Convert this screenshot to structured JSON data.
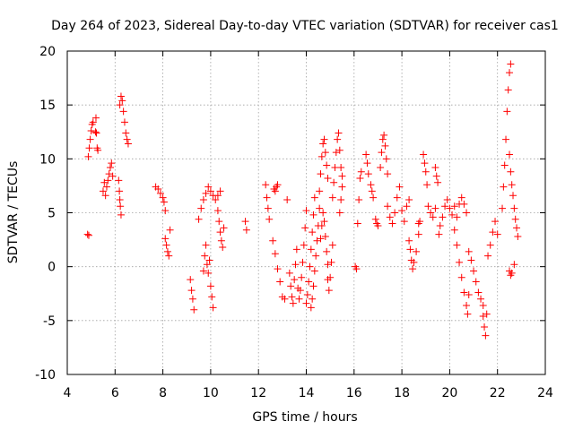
{
  "chart_data": {
    "type": "scatter",
    "title": "Day 264 of 2023, Sidereal Day-to-day VTEC variation (SDTVAR) for receiver cas1",
    "xlabel": "GPS time / hours",
    "ylabel": "SDTVAR / TECUs",
    "xlim": [
      4,
      24
    ],
    "ylim": [
      -10,
      20
    ],
    "grid": true,
    "marker": "+",
    "color": "#ff0000",
    "x_ticks": [
      "4",
      "6",
      "8",
      "10",
      "12",
      "14",
      "16",
      "18",
      "20",
      "22",
      "24"
    ],
    "y_ticks": [
      "-10",
      "-5",
      "0",
      "5",
      "10",
      "15",
      "20"
    ],
    "series": [
      {
        "name": "SDTVAR",
        "points": [
          [
            4.85,
            3.0
          ],
          [
            4.9,
            2.9
          ],
          [
            4.88,
            10.2
          ],
          [
            4.92,
            11.0
          ],
          [
            4.96,
            11.8
          ],
          [
            5.0,
            12.6
          ],
          [
            5.04,
            13.2
          ],
          [
            5.08,
            13.4
          ],
          [
            5.18,
            12.5
          ],
          [
            5.2,
            13.8
          ],
          [
            5.22,
            12.4
          ],
          [
            5.25,
            11.0
          ],
          [
            5.28,
            10.8
          ],
          [
            5.5,
            7.0
          ],
          [
            5.55,
            7.8
          ],
          [
            5.6,
            6.6
          ],
          [
            5.65,
            7.4
          ],
          [
            5.7,
            8.0
          ],
          [
            5.75,
            8.6
          ],
          [
            5.8,
            9.2
          ],
          [
            5.85,
            9.6
          ],
          [
            5.9,
            8.4
          ],
          [
            6.15,
            8.0
          ],
          [
            6.18,
            7.0
          ],
          [
            6.2,
            6.2
          ],
          [
            6.22,
            5.6
          ],
          [
            6.25,
            4.8
          ],
          [
            6.2,
            15.0
          ],
          [
            6.25,
            15.8
          ],
          [
            6.3,
            15.4
          ],
          [
            6.35,
            14.4
          ],
          [
            6.4,
            13.4
          ],
          [
            6.45,
            12.4
          ],
          [
            6.5,
            11.8
          ],
          [
            6.55,
            11.4
          ],
          [
            7.7,
            7.4
          ],
          [
            7.8,
            7.2
          ],
          [
            7.9,
            6.8
          ],
          [
            8.0,
            6.4
          ],
          [
            8.05,
            6.0
          ],
          [
            8.1,
            5.2
          ],
          [
            8.1,
            2.6
          ],
          [
            8.15,
            2.0
          ],
          [
            8.2,
            1.4
          ],
          [
            8.25,
            1.0
          ],
          [
            8.3,
            3.4
          ],
          [
            9.15,
            -1.2
          ],
          [
            9.2,
            -2.2
          ],
          [
            9.25,
            -3.0
          ],
          [
            9.3,
            -4.0
          ],
          [
            9.5,
            4.4
          ],
          [
            9.6,
            5.4
          ],
          [
            9.7,
            6.2
          ],
          [
            9.8,
            6.8
          ],
          [
            9.9,
            7.4
          ],
          [
            10.0,
            7.0
          ],
          [
            10.1,
            6.6
          ],
          [
            10.2,
            6.2
          ],
          [
            10.3,
            6.6
          ],
          [
            10.4,
            7.0
          ],
          [
            9.7,
            -0.4
          ],
          [
            9.75,
            1.0
          ],
          [
            9.8,
            2.0
          ],
          [
            9.85,
            0.2
          ],
          [
            9.9,
            -0.6
          ],
          [
            9.95,
            0.6
          ],
          [
            10.0,
            -1.8
          ],
          [
            10.05,
            -2.8
          ],
          [
            10.1,
            -3.8
          ],
          [
            10.3,
            5.2
          ],
          [
            10.35,
            4.2
          ],
          [
            10.4,
            3.2
          ],
          [
            10.45,
            2.4
          ],
          [
            10.5,
            1.8
          ],
          [
            10.55,
            3.6
          ],
          [
            11.45,
            4.2
          ],
          [
            11.5,
            3.4
          ],
          [
            12.3,
            7.6
          ],
          [
            12.35,
            6.4
          ],
          [
            12.4,
            5.4
          ],
          [
            12.45,
            4.4
          ],
          [
            12.65,
            7.2
          ],
          [
            12.7,
            7.0
          ],
          [
            12.75,
            7.4
          ],
          [
            12.8,
            7.6
          ],
          [
            12.6,
            2.4
          ],
          [
            12.7,
            1.2
          ],
          [
            12.8,
            -0.2
          ],
          [
            12.9,
            -1.4
          ],
          [
            13.0,
            -2.8
          ],
          [
            13.1,
            -3.0
          ],
          [
            13.2,
            6.2
          ],
          [
            13.3,
            -0.6
          ],
          [
            13.35,
            -1.8
          ],
          [
            13.4,
            -2.8
          ],
          [
            13.45,
            -3.4
          ],
          [
            13.5,
            -1.2
          ],
          [
            13.55,
            0.2
          ],
          [
            13.6,
            1.6
          ],
          [
            13.65,
            -2.0
          ],
          [
            13.7,
            -3.0
          ],
          [
            13.75,
            -2.2
          ],
          [
            13.8,
            -1.0
          ],
          [
            13.85,
            0.4
          ],
          [
            13.9,
            2.0
          ],
          [
            13.95,
            3.6
          ],
          [
            14.0,
            5.2
          ],
          [
            14.0,
            -3.4
          ],
          [
            14.05,
            -2.6
          ],
          [
            14.1,
            -1.4
          ],
          [
            14.15,
            0.0
          ],
          [
            14.2,
            1.6
          ],
          [
            14.25,
            3.2
          ],
          [
            14.3,
            4.8
          ],
          [
            14.35,
            6.4
          ],
          [
            14.2,
            -3.8
          ],
          [
            14.25,
            -3.0
          ],
          [
            14.3,
            -1.8
          ],
          [
            14.35,
            -0.4
          ],
          [
            14.4,
            1.0
          ],
          [
            14.45,
            2.4
          ],
          [
            14.5,
            3.8
          ],
          [
            14.55,
            5.4
          ],
          [
            14.55,
            7.0
          ],
          [
            14.6,
            8.6
          ],
          [
            14.65,
            10.2
          ],
          [
            14.7,
            11.4
          ],
          [
            14.75,
            11.8
          ],
          [
            14.8,
            10.6
          ],
          [
            14.85,
            9.4
          ],
          [
            14.9,
            8.2
          ],
          [
            14.6,
            2.6
          ],
          [
            14.65,
            3.8
          ],
          [
            14.7,
            5.0
          ],
          [
            14.75,
            4.2
          ],
          [
            14.8,
            2.8
          ],
          [
            14.85,
            1.4
          ],
          [
            14.9,
            0.2
          ],
          [
            14.9,
            -1.2
          ],
          [
            14.95,
            -2.2
          ],
          [
            15.0,
            -1.0
          ],
          [
            15.05,
            0.4
          ],
          [
            15.1,
            2.0
          ],
          [
            15.1,
            6.4
          ],
          [
            15.15,
            7.8
          ],
          [
            15.2,
            9.2
          ],
          [
            15.25,
            10.6
          ],
          [
            15.3,
            11.8
          ],
          [
            15.35,
            12.4
          ],
          [
            15.4,
            10.8
          ],
          [
            15.45,
            9.2
          ],
          [
            15.5,
            8.4
          ],
          [
            15.4,
            5.0
          ],
          [
            15.45,
            6.2
          ],
          [
            15.5,
            7.4
          ],
          [
            16.05,
            0.0
          ],
          [
            16.1,
            -0.2
          ],
          [
            16.15,
            4.0
          ],
          [
            16.2,
            6.2
          ],
          [
            16.25,
            8.2
          ],
          [
            16.3,
            8.8
          ],
          [
            16.5,
            10.4
          ],
          [
            16.55,
            9.6
          ],
          [
            16.6,
            8.6
          ],
          [
            16.7,
            7.6
          ],
          [
            16.75,
            7.0
          ],
          [
            16.8,
            6.4
          ],
          [
            16.9,
            4.4
          ],
          [
            16.95,
            4.0
          ],
          [
            17.0,
            3.8
          ],
          [
            17.1,
            9.2
          ],
          [
            17.15,
            10.6
          ],
          [
            17.2,
            11.8
          ],
          [
            17.25,
            12.2
          ],
          [
            17.3,
            11.2
          ],
          [
            17.35,
            10.0
          ],
          [
            17.4,
            8.6
          ],
          [
            17.4,
            5.6
          ],
          [
            17.5,
            4.6
          ],
          [
            17.6,
            4.0
          ],
          [
            17.7,
            5.0
          ],
          [
            17.8,
            6.4
          ],
          [
            17.9,
            7.4
          ],
          [
            18.0,
            5.2
          ],
          [
            18.1,
            4.2
          ],
          [
            18.2,
            5.6
          ],
          [
            18.3,
            6.2
          ],
          [
            18.3,
            2.4
          ],
          [
            18.35,
            1.6
          ],
          [
            18.4,
            0.6
          ],
          [
            18.45,
            -0.2
          ],
          [
            18.5,
            0.4
          ],
          [
            18.6,
            1.4
          ],
          [
            18.7,
            3.0
          ],
          [
            18.7,
            4.0
          ],
          [
            18.75,
            4.2
          ],
          [
            18.9,
            10.4
          ],
          [
            18.95,
            9.6
          ],
          [
            19.0,
            8.8
          ],
          [
            19.05,
            7.6
          ],
          [
            19.1,
            5.6
          ],
          [
            19.2,
            5.0
          ],
          [
            19.3,
            4.6
          ],
          [
            19.4,
            5.4
          ],
          [
            19.4,
            9.2
          ],
          [
            19.45,
            8.4
          ],
          [
            19.5,
            7.8
          ],
          [
            19.55,
            3.0
          ],
          [
            19.6,
            3.8
          ],
          [
            19.7,
            4.6
          ],
          [
            19.8,
            5.6
          ],
          [
            19.9,
            6.2
          ],
          [
            20.0,
            5.4
          ],
          [
            20.1,
            4.8
          ],
          [
            20.2,
            5.6
          ],
          [
            20.2,
            3.4
          ],
          [
            20.3,
            4.6
          ],
          [
            20.4,
            5.8
          ],
          [
            20.5,
            6.4
          ],
          [
            20.6,
            5.8
          ],
          [
            20.7,
            5.0
          ],
          [
            20.3,
            2.0
          ],
          [
            20.4,
            0.4
          ],
          [
            20.5,
            -1.0
          ],
          [
            20.6,
            -2.4
          ],
          [
            20.7,
            -3.6
          ],
          [
            20.75,
            -4.4
          ],
          [
            20.8,
            -2.6
          ],
          [
            20.8,
            1.4
          ],
          [
            20.9,
            0.6
          ],
          [
            21.0,
            -0.4
          ],
          [
            21.1,
            -1.4
          ],
          [
            21.2,
            -2.4
          ],
          [
            21.3,
            -3.0
          ],
          [
            21.4,
            -3.6
          ],
          [
            21.4,
            -4.6
          ],
          [
            21.45,
            -5.6
          ],
          [
            21.5,
            -6.4
          ],
          [
            21.55,
            -4.4
          ],
          [
            21.6,
            1.0
          ],
          [
            21.7,
            2.0
          ],
          [
            21.8,
            3.2
          ],
          [
            21.9,
            4.2
          ],
          [
            22.0,
            3.0
          ],
          [
            22.2,
            5.4
          ],
          [
            22.25,
            7.4
          ],
          [
            22.3,
            9.4
          ],
          [
            22.35,
            11.8
          ],
          [
            22.4,
            14.4
          ],
          [
            22.45,
            16.4
          ],
          [
            22.5,
            18.0
          ],
          [
            22.55,
            18.8
          ],
          [
            22.5,
            10.4
          ],
          [
            22.55,
            8.8
          ],
          [
            22.6,
            7.6
          ],
          [
            22.65,
            6.6
          ],
          [
            22.7,
            5.4
          ],
          [
            22.75,
            4.4
          ],
          [
            22.8,
            3.6
          ],
          [
            22.85,
            2.8
          ],
          [
            22.5,
            -0.4
          ],
          [
            22.55,
            -0.8
          ],
          [
            22.6,
            -0.6
          ],
          [
            22.7,
            0.2
          ]
        ]
      }
    ]
  }
}
